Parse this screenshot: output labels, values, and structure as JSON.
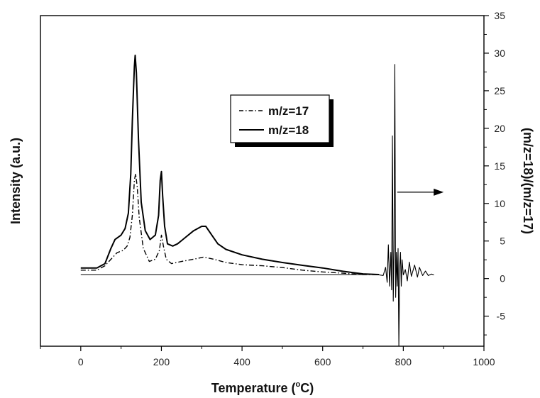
{
  "chart_data": {
    "type": "line",
    "title": "",
    "xlabel_main": "Temperature (",
    "xlabel_sup": "o",
    "xlabel_end": "C)",
    "ylabel_left": "Intensity (a.u.)",
    "ylabel_right": "(m/z=18)/(m/z=17)",
    "xlim": [
      -100,
      1000
    ],
    "x_ticks": [
      0,
      200,
      400,
      600,
      800,
      1000
    ],
    "right_ylim": [
      -9,
      35
    ],
    "right_ticks": [
      -5,
      0,
      5,
      10,
      15,
      20,
      25,
      30,
      35
    ],
    "left_ylim": [
      0,
      1
    ],
    "left_ticks_labeled": false,
    "grid": false,
    "legend": {
      "position": "top-center",
      "entries": [
        {
          "label": "m/z=17",
          "style": "dash-dot"
        },
        {
          "label": "m/z=18",
          "style": "solid"
        }
      ]
    },
    "series": [
      {
        "name": "m/z=17",
        "axis": "left",
        "style": "dash-dot",
        "x": [
          0,
          40,
          60,
          75,
          90,
          105,
          115,
          122,
          128,
          133,
          136,
          140,
          145,
          155,
          170,
          185,
          195,
          200,
          205,
          212,
          225,
          250,
          280,
          305,
          330,
          360,
          400,
          450,
          500,
          550,
          600,
          650,
          700,
          740
        ],
        "y": [
          0.02,
          0.02,
          0.04,
          0.07,
          0.1,
          0.11,
          0.13,
          0.17,
          0.27,
          0.43,
          0.46,
          0.4,
          0.26,
          0.12,
          0.06,
          0.07,
          0.11,
          0.18,
          0.13,
          0.07,
          0.05,
          0.06,
          0.07,
          0.08,
          0.07,
          0.055,
          0.045,
          0.04,
          0.032,
          0.02,
          0.012,
          0.006,
          0.0,
          0.0
        ]
      },
      {
        "name": "m/z=18",
        "axis": "left",
        "style": "solid",
        "x": [
          0,
          40,
          60,
          75,
          85,
          100,
          110,
          118,
          124,
          128,
          131,
          133,
          135,
          138,
          143,
          150,
          160,
          172,
          185,
          193,
          197,
          200,
          203,
          208,
          215,
          228,
          240,
          260,
          280,
          300,
          310,
          325,
          340,
          360,
          400,
          450,
          500,
          550,
          600,
          650,
          700,
          740
        ],
        "y": [
          0.03,
          0.03,
          0.05,
          0.12,
          0.16,
          0.18,
          0.21,
          0.28,
          0.46,
          0.7,
          0.86,
          0.95,
          1.0,
          0.92,
          0.62,
          0.33,
          0.2,
          0.16,
          0.18,
          0.27,
          0.43,
          0.47,
          0.36,
          0.22,
          0.14,
          0.13,
          0.14,
          0.17,
          0.2,
          0.22,
          0.22,
          0.18,
          0.14,
          0.115,
          0.09,
          0.07,
          0.055,
          0.042,
          0.03,
          0.015,
          0.003,
          0.0
        ]
      },
      {
        "name": "",
        "axis": "right",
        "style": "solid",
        "x": [
          740,
          750,
          756,
          760,
          763,
          766,
          769,
          771,
          773,
          775,
          777,
          779,
          781,
          783,
          785,
          787,
          789,
          791,
          793,
          795,
          797,
          800,
          805,
          810,
          815,
          820,
          828,
          835,
          840,
          848,
          855,
          862,
          870,
          876
        ],
        "y": [
          0.5,
          0.4,
          1.5,
          -0.5,
          4.5,
          -1,
          3.5,
          -1.5,
          19,
          -3,
          4,
          28.5,
          -2.5,
          3.5,
          -1,
          4,
          -9,
          1.5,
          3.5,
          -1,
          2.5,
          0.5,
          1.2,
          -0.3,
          2.2,
          0.3,
          1.8,
          0.2,
          1.5,
          0.4,
          1.0,
          0.4,
          0.6,
          0.5
        ]
      }
    ],
    "baseline": {
      "x": [
        0,
        740
      ],
      "axis": "left",
      "y": 0
    },
    "arrow_annotation": {
      "direction": "right",
      "target_axis": "right",
      "at_y": 11.5,
      "x_from": 785,
      "x_to": 900
    }
  }
}
